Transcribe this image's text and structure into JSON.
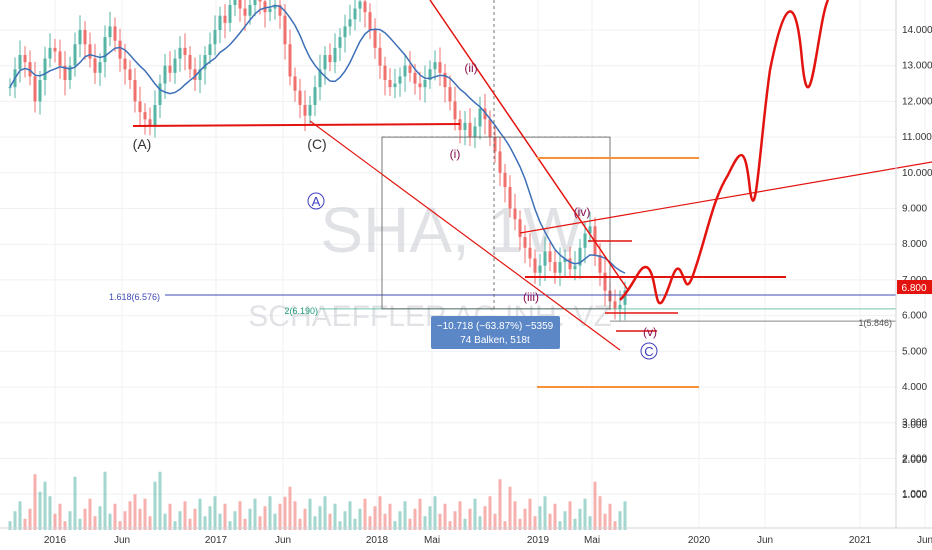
{
  "chart_data": {
    "type": "candlestick",
    "symbol": "SHA, 1W",
    "watermark_sub": "SCHAEFFLER AG INH. VZ",
    "price_axis": {
      "ticks": [
        "14.000",
        "13.000",
        "12.000",
        "11.000",
        "10.000",
        "9.000",
        "8.000",
        "7.000",
        "6.000",
        "5.000",
        "4.000",
        "3.000",
        "2.000",
        "1.000"
      ],
      "tick_values": [
        14,
        13,
        12,
        11,
        10,
        9,
        8,
        7,
        6,
        5,
        4,
        3,
        2,
        1
      ],
      "current_price": "6.800",
      "current_value": 6.8
    },
    "time_axis": [
      "2016",
      "Jun",
      "2017",
      "Jun",
      "2018",
      "Mai",
      "2019",
      "Mai",
      "2020",
      "Jun",
      "2021",
      "Jun"
    ],
    "colors": {
      "up": "#56b4a5",
      "down": "#ef6f6c",
      "wave": "#e3140f",
      "ma": "#3d6fb8",
      "fib": "#3f4bb4",
      "orange": "#f7923a",
      "measure": "#5b87c7"
    },
    "price_series_weekly": [
      12.4,
      12.9,
      13.3,
      13.1,
      12.7,
      12.0,
      12.6,
      13.2,
      13.5,
      13.4,
      13.0,
      12.6,
      13.0,
      13.6,
      14.0,
      13.6,
      13.2,
      12.8,
      13.1,
      13.8,
      14.1,
      13.7,
      13.2,
      12.9,
      12.6,
      12.0,
      11.7,
      11.5,
      11.3,
      11.9,
      12.5,
      13.0,
      12.8,
      13.2,
      13.5,
      13.3,
      12.9,
      12.6,
      12.9,
      13.3,
      13.6,
      14.0,
      14.4,
      14.2,
      14.7,
      14.9,
      14.6,
      14.4,
      14.7,
      15.0,
      14.8,
      14.5,
      14.6,
      14.7,
      14.4,
      13.6,
      12.7,
      12.3,
      11.9,
      11.6,
      11.9,
      12.4,
      12.9,
      13.3,
      13.1,
      13.5,
      13.8,
      14.1,
      14.3,
      14.6,
      14.8,
      14.5,
      14.0,
      13.5,
      13.0,
      12.6,
      12.4,
      12.5,
      12.7,
      13.0,
      12.8,
      12.5,
      12.4,
      12.6,
      12.9,
      13.1,
      12.8,
      12.4,
      12.0,
      11.5,
      11.2,
      11.4,
      11.0,
      11.3,
      11.8,
      11.5,
      11.0,
      10.6,
      10.0,
      9.6,
      9.0,
      8.7,
      8.2,
      7.9,
      7.6,
      7.2,
      7.4,
      7.8,
      7.5,
      7.2,
      7.5,
      7.6,
      7.3,
      7.4,
      7.9,
      8.3,
      8.5,
      7.7,
      7.2,
      6.7,
      6.4,
      6.2,
      6.3,
      6.7
    ],
    "wave_labels": {
      "A": "(A)",
      "C": "(C)",
      "circleA": "A",
      "circleC": "C",
      "i": "(i)",
      "ii": "(ii)",
      "iii": "(iii)",
      "iv": "(iv)",
      "v": "(v)"
    },
    "fib": {
      "fib1618": "1.618(6.576)",
      "fib2": "2(6.190)",
      "fib1": "1(5.846)"
    },
    "fib_levels": [
      6.576,
      6.19,
      5.846
    ],
    "measure_box": {
      "line1": "−10.718 (−63.87%) −5359",
      "line2": "74 Balken, 518t"
    },
    "volume_axis": [
      "3.000",
      "2.000",
      "1.000"
    ],
    "volume_values": [
      3,
      2,
      1
    ]
  }
}
